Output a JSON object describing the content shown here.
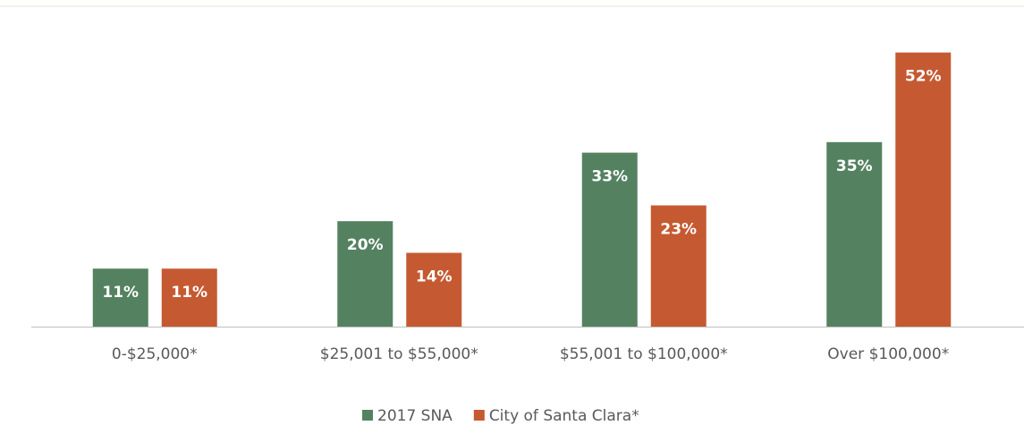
{
  "chart_data": {
    "type": "bar",
    "categories": [
      "0-$25,000*",
      "$25,001 to $55,000*",
      "$55,001 to $100,000*",
      "Over $100,000*"
    ],
    "series": [
      {
        "name": "2017 SNA",
        "color": "#548261",
        "values": [
          11,
          20,
          33,
          35
        ],
        "value_labels": [
          "11%",
          "20%",
          "33%",
          "35%"
        ]
      },
      {
        "name": "City of Santa Clara*",
        "color": "#c55a32",
        "values": [
          11,
          14,
          23,
          52
        ],
        "value_labels": [
          "11%",
          "14%",
          "23%",
          "52%"
        ]
      }
    ],
    "ylim": [
      0,
      55
    ],
    "legend": "bottom"
  }
}
